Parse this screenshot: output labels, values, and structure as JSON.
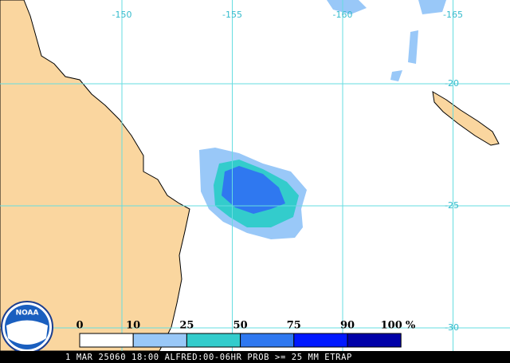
{
  "map": {
    "longitude_ticks": [
      -150,
      -155,
      -160,
      -165
    ],
    "latitude_ticks": [
      -20,
      -25,
      -30
    ],
    "logo_text": "NOAA"
  },
  "legend": {
    "bins": [
      0,
      10,
      25,
      50,
      75,
      90,
      100
    ],
    "unit": "%",
    "colors": [
      "#ffffff",
      "#99c8f8",
      "#33cccc",
      "#2f78f0",
      "#0018ff",
      "#0000a8"
    ]
  },
  "caption": "1 MAR 25060 18:00 ALFRED:00-06HR PROB >= 25 MM ETRAP"
}
